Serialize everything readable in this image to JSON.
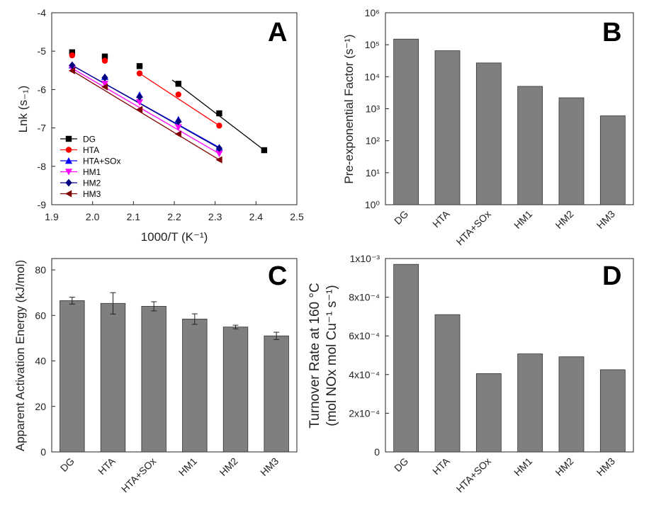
{
  "colors": {
    "bar": "#7f7f7f",
    "bar_stroke": "#333333",
    "axis": "#222222",
    "DG": "#000000",
    "HTA": "#ff0000",
    "HTA+SOx": "#0000ff",
    "HM1": "#ff00ff",
    "HM2": "#000080",
    "HM3": "#800000"
  },
  "chart_data": [
    {
      "panel": "A",
      "type": "line",
      "xlabel": "1000/T (K⁻¹)",
      "ylabel": "Lnk (s₋₁)",
      "xlim": [
        1.9,
        2.5
      ],
      "ylim": [
        -9,
        -4
      ],
      "xticks": [
        "1.9",
        "2.0",
        "2.1",
        "2.2",
        "2.3",
        "2.4",
        "2.5"
      ],
      "yticks": [
        "-9",
        "-8",
        "-7",
        "-6",
        "-5",
        "-4"
      ],
      "legend_position": "bottom-left",
      "series": [
        {
          "name": "DG",
          "marker": "square",
          "points": [
            [
              1.95,
              -5.03
            ],
            [
              2.03,
              -5.14
            ],
            [
              2.115,
              -5.39
            ],
            [
              2.21,
              -5.85
            ],
            [
              2.31,
              -6.62
            ],
            [
              2.42,
              -7.58
            ]
          ],
          "fit": [
            [
              2.195,
              -5.75
            ],
            [
              2.42,
              -7.58
            ]
          ]
        },
        {
          "name": "HTA",
          "marker": "circle",
          "points": [
            [
              1.95,
              -5.11
            ],
            [
              2.03,
              -5.25
            ],
            [
              2.115,
              -5.58
            ],
            [
              2.21,
              -6.13
            ],
            [
              2.31,
              -6.94
            ]
          ],
          "fit": [
            [
              2.115,
              -5.58
            ],
            [
              2.31,
              -6.94
            ]
          ]
        },
        {
          "name": "HTA+SOx",
          "marker": "triangle-up",
          "points": [
            [
              1.95,
              -5.37
            ],
            [
              2.03,
              -5.67
            ],
            [
              2.115,
              -6.14
            ],
            [
              2.21,
              -6.78
            ],
            [
              2.31,
              -7.51
            ]
          ],
          "fit": [
            [
              1.95,
              -5.37
            ],
            [
              2.31,
              -7.51
            ]
          ]
        },
        {
          "name": "HM1",
          "marker": "triangle-down",
          "points": [
            [
              1.95,
              -5.45
            ],
            [
              2.03,
              -5.85
            ],
            [
              2.115,
              -6.33
            ],
            [
              2.21,
              -6.98
            ],
            [
              2.31,
              -7.67
            ]
          ],
          "fit": [
            [
              1.95,
              -5.45
            ],
            [
              2.31,
              -7.67
            ]
          ]
        },
        {
          "name": "HM2",
          "marker": "diamond",
          "points": [
            [
              1.95,
              -5.37
            ],
            [
              2.03,
              -5.69
            ],
            [
              2.115,
              -6.19
            ],
            [
              2.21,
              -6.83
            ],
            [
              2.31,
              -7.53
            ]
          ],
          "fit": [
            [
              1.95,
              -5.37
            ],
            [
              2.31,
              -7.53
            ]
          ]
        },
        {
          "name": "HM3",
          "marker": "triangle-left",
          "points": [
            [
              1.95,
              -5.51
            ],
            [
              2.03,
              -5.93
            ],
            [
              2.115,
              -6.52
            ],
            [
              2.21,
              -7.16
            ],
            [
              2.31,
              -7.83
            ]
          ],
          "fit": [
            [
              1.95,
              -5.51
            ],
            [
              2.31,
              -7.83
            ]
          ]
        }
      ]
    },
    {
      "panel": "B",
      "type": "bar",
      "ylabel": "Pre-exponential Factor (s⁻¹)",
      "yscale": "log",
      "ylim": [
        1,
        1000000
      ],
      "yticks": [
        "10⁰",
        "10¹",
        "10²",
        "10³",
        "10⁴",
        "10⁵",
        "10⁶"
      ],
      "categories": [
        "DG",
        "HTA",
        "HTA+SOx",
        "HM1",
        "HM2",
        "HM3"
      ],
      "values": [
        150000,
        65000,
        27000,
        5000,
        2200,
        600
      ]
    },
    {
      "panel": "C",
      "type": "bar",
      "ylabel": "Apparent Activation Energy (kJ/mol)",
      "ylim": [
        0,
        85
      ],
      "yticks": [
        "0",
        "20",
        "40",
        "60",
        "80"
      ],
      "categories": [
        "DG",
        "HTA",
        "HTA+SOx",
        "HM1",
        "HM2",
        "HM3"
      ],
      "values": [
        66.5,
        65.3,
        64.0,
        58.4,
        54.9,
        51.0
      ],
      "errors": [
        1.5,
        4.7,
        2.0,
        2.3,
        0.8,
        1.6
      ]
    },
    {
      "panel": "D",
      "type": "bar",
      "ylabel_line1": "Turnover Rate at 160 °C",
      "ylabel_line2": "(mol NOx mol Cu⁻¹ s⁻¹)",
      "ylim": [
        0,
        0.001
      ],
      "yticks": [
        "0",
        "2x10⁻⁴",
        "4x10⁻⁴",
        "6x10⁻⁴",
        "8x10⁻⁴",
        "1x10⁻³"
      ],
      "categories": [
        "DG",
        "HTA",
        "HTA+SOx",
        "HM1",
        "HM2",
        "HM3"
      ],
      "values": [
        0.00097,
        0.00071,
        0.000405,
        0.000507,
        0.000492,
        0.000425
      ]
    }
  ]
}
